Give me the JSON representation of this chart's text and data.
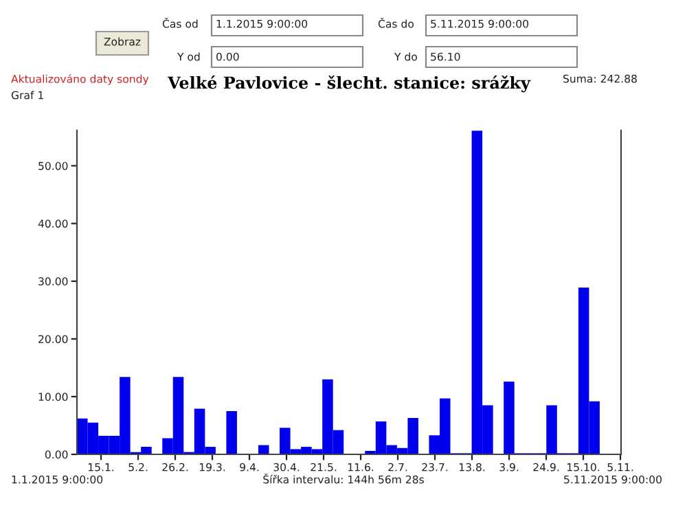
{
  "chart_data": {
    "type": "bar",
    "title": "Velké Pavlovice - šlecht. stanice: srážky",
    "color": "#0000ee",
    "x": [
      "2015-01-04T09:28",
      "2015-01-10T10:24",
      "2015-01-16T11:21",
      "2015-01-22T12:17",
      "2015-01-28T13:14",
      "2015-02-03T14:10",
      "2015-02-09T15:07",
      "2015-02-15T16:03",
      "2015-02-21T17:00",
      "2015-02-27T17:56",
      "2015-03-05T18:53",
      "2015-03-11T19:49",
      "2015-03-17T20:46",
      "2015-03-23T21:42",
      "2015-03-29T22:39",
      "2015-04-04T23:35",
      "2015-04-11T00:31",
      "2015-04-17T01:28",
      "2015-04-23T02:24",
      "2015-04-29T03:21",
      "2015-05-05T04:17",
      "2015-05-11T05:14",
      "2015-05-17T06:10",
      "2015-05-23T07:07",
      "2015-05-29T08:03",
      "2015-06-04T09:00",
      "2015-06-10T09:56",
      "2015-06-16T10:53",
      "2015-06-22T11:49",
      "2015-06-28T12:46",
      "2015-07-04T13:42",
      "2015-07-10T14:39",
      "2015-07-16T15:35",
      "2015-07-22T16:31",
      "2015-07-28T17:28",
      "2015-08-03T18:24",
      "2015-08-09T19:21",
      "2015-08-15T20:17",
      "2015-08-21T21:14",
      "2015-08-27T22:10",
      "2015-09-02T23:07",
      "2015-09-09T00:03",
      "2015-09-15T01:00",
      "2015-09-21T01:56",
      "2015-09-27T02:53",
      "2015-10-03T03:49",
      "2015-10-09T04:46",
      "2015-10-15T05:42",
      "2015-10-21T06:39",
      "2015-10-27T07:35",
      "2015-11-02T08:32"
    ],
    "values": [
      6.2,
      5.5,
      3.2,
      3.2,
      13.4,
      0.4,
      1.3,
      0,
      2.8,
      13.4,
      0.4,
      7.9,
      1.3,
      0,
      7.5,
      0,
      0,
      1.6,
      0,
      4.6,
      0.9,
      1.3,
      0.9,
      13.0,
      4.2,
      0,
      0,
      0.6,
      5.7,
      1.6,
      1.1,
      6.3,
      0,
      3.3,
      9.7,
      0.2,
      0.2,
      56.1,
      8.5,
      0,
      12.6,
      0.2,
      0.2,
      0.2,
      8.5,
      0.2,
      0.2,
      28.9,
      9.2,
      0,
      0
    ],
    "xlim": [
      "2015-01-01T09:00",
      "2015-11-05T09:00"
    ],
    "xticks": [
      {
        "value": "2015-01-15",
        "label": "15.1."
      },
      {
        "value": "2015-02-05",
        "label": "5.2."
      },
      {
        "value": "2015-02-26",
        "label": "26.2."
      },
      {
        "value": "2015-03-19",
        "label": "19.3."
      },
      {
        "value": "2015-04-09",
        "label": "9.4."
      },
      {
        "value": "2015-04-30",
        "label": "30.4."
      },
      {
        "value": "2015-05-21",
        "label": "21.5."
      },
      {
        "value": "2015-06-11",
        "label": "11.6."
      },
      {
        "value": "2015-07-02",
        "label": "2.7."
      },
      {
        "value": "2015-07-23",
        "label": "23.7."
      },
      {
        "value": "2015-08-13",
        "label": "13.8."
      },
      {
        "value": "2015-09-03",
        "label": "3.9."
      },
      {
        "value": "2015-09-24",
        "label": "24.9."
      },
      {
        "value": "2015-10-15",
        "label": "15.10."
      },
      {
        "value": "2015-11-05",
        "label": "5.11."
      }
    ],
    "ylim": [
      0,
      56.1
    ],
    "yticks": [
      {
        "value": 0,
        "label": "0.00"
      },
      {
        "value": 10,
        "label": "10.00"
      },
      {
        "value": 20,
        "label": "20.00"
      },
      {
        "value": 30,
        "label": "30.00"
      },
      {
        "value": 40,
        "label": "40.00"
      },
      {
        "value": 50,
        "label": "50.00"
      }
    ],
    "grid": false,
    "legend": false,
    "annotations": [
      "Zobraz",
      "Čas od",
      "1.1.2015 9:00:00",
      "Čas do",
      "5.11.2015 9:00:00",
      "Y od",
      "0.00",
      "Y do",
      "56.10",
      "Aktualizováno daty sondy",
      "Suma: 242.88",
      "Graf 1",
      "1.1.2015 9:00:00",
      "Šířka intervalu: 144h 56m 28s",
      "5.11.2015 9:00:00"
    ]
  }
}
